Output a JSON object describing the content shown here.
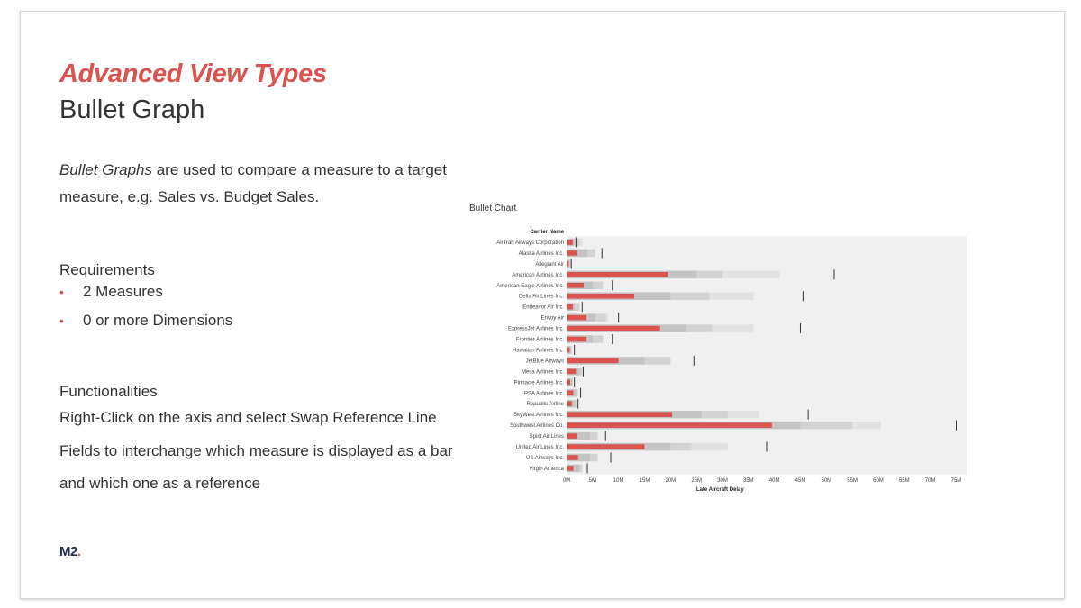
{
  "slide": {
    "heading": "Advanced View Types",
    "subheading": "Bullet Graph",
    "description_em": "Bullet Graphs",
    "description_rest": " are used to compare a measure to a target measure, e.g. Sales vs. Budget Sales.",
    "requirements_title": "Requirements",
    "requirements": [
      "2 Measures",
      "0 or more Dimensions"
    ],
    "functionalities_title": "Functionalities",
    "functionalities_text": "Right-Click on the axis and select Swap Reference Line Fields to interchange which measure is displayed as a bar and which one as a reference",
    "logo_text": "M2",
    "logo_dot": "."
  },
  "colors": {
    "accent": "#d9534f",
    "bar": "#d9534f",
    "band_dark": "#c4c4c4",
    "band_mid": "#d3d3d3",
    "band_light": "#e2e2e2",
    "plot_bg": "#f0f0f0",
    "target": "#333333"
  },
  "chart_data": {
    "type": "bar",
    "title": "Bullet Chart",
    "row_header": "Carrier Name",
    "xlabel": "Late Aircraft Delay",
    "ylabel": "",
    "xlim": [
      0,
      77
    ],
    "x_ticks": [
      0,
      5,
      10,
      15,
      20,
      25,
      30,
      35,
      40,
      45,
      50,
      55,
      60,
      65,
      70,
      75
    ],
    "x_tick_labels": [
      "0M",
      "5M",
      "10M",
      "15M",
      "20M",
      "25M",
      "30M",
      "35M",
      "40M",
      "45M",
      "50M",
      "55M",
      "60M",
      "65M",
      "70M",
      "75M"
    ],
    "categories": [
      "AirTran Airways Corporation",
      "Alaska Airlines Inc.",
      "Allegiant Air",
      "American Airlines Inc.",
      "American Eagle Airlines Inc.",
      "Delta Air Lines Inc.",
      "Endeavor Air Inc.",
      "Envoy Air",
      "ExpressJet Airlines Inc.",
      "Frontier Airlines Inc.",
      "Hawaiian Airlines Inc.",
      "JetBlue Airways",
      "Mesa Airlines Inc.",
      "Pinnacle Airlines Inc.",
      "PSA Airlines Inc.",
      "Republic Airline",
      "SkyWest Airlines Inc.",
      "Southwest Airlines Co.",
      "Spirit Air Lines",
      "United Air Lines Inc.",
      "US Airways Inc.",
      "Virgin America"
    ],
    "series": [
      {
        "name": "",
        "values": [
          1.2,
          2.0,
          0.4,
          19.5,
          3.3,
          13.0,
          1.2,
          3.8,
          18.0,
          3.8,
          0.6,
          10.0,
          1.8,
          0.7,
          1.3,
          1.0,
          20.3,
          39.5,
          2.0,
          15.0,
          2.2,
          1.3
        ]
      }
    ],
    "bands": [
      [
        1.5,
        2.5,
        3.0
      ],
      [
        4.0,
        5.5,
        5.5
      ],
      [
        0.5,
        0.8,
        0.8
      ],
      [
        25.0,
        30.0,
        41.0
      ],
      [
        5.0,
        7.0,
        7.0
      ],
      [
        20.0,
        27.5,
        36.0
      ],
      [
        1.5,
        2.5,
        2.5
      ],
      [
        5.5,
        7.5,
        8.0
      ],
      [
        23.0,
        28.0,
        36.0
      ],
      [
        5.0,
        7.0,
        7.0
      ],
      [
        0.8,
        1.0,
        1.0
      ],
      [
        15.0,
        20.0,
        20.0
      ],
      [
        2.5,
        3.0,
        3.0
      ],
      [
        1.0,
        1.2,
        1.2
      ],
      [
        1.8,
        2.2,
        2.2
      ],
      [
        1.5,
        2.0,
        2.0
      ],
      [
        26.0,
        31.0,
        37.0
      ],
      [
        45.0,
        55.0,
        60.5
      ],
      [
        4.5,
        6.0,
        6.0
      ],
      [
        20.0,
        24.0,
        31.0
      ],
      [
        4.5,
        6.0,
        6.0
      ],
      [
        2.5,
        3.0,
        3.0
      ]
    ],
    "targets": [
      1.8,
      6.8,
      0.9,
      51.5,
      8.8,
      45.5,
      3.0,
      10.0,
      45.0,
      8.8,
      1.5,
      24.5,
      3.2,
      1.5,
      2.7,
      2.2,
      46.5,
      75.0,
      7.5,
      38.5,
      8.5,
      4.0
    ],
    "grid": false,
    "legend": "none"
  }
}
